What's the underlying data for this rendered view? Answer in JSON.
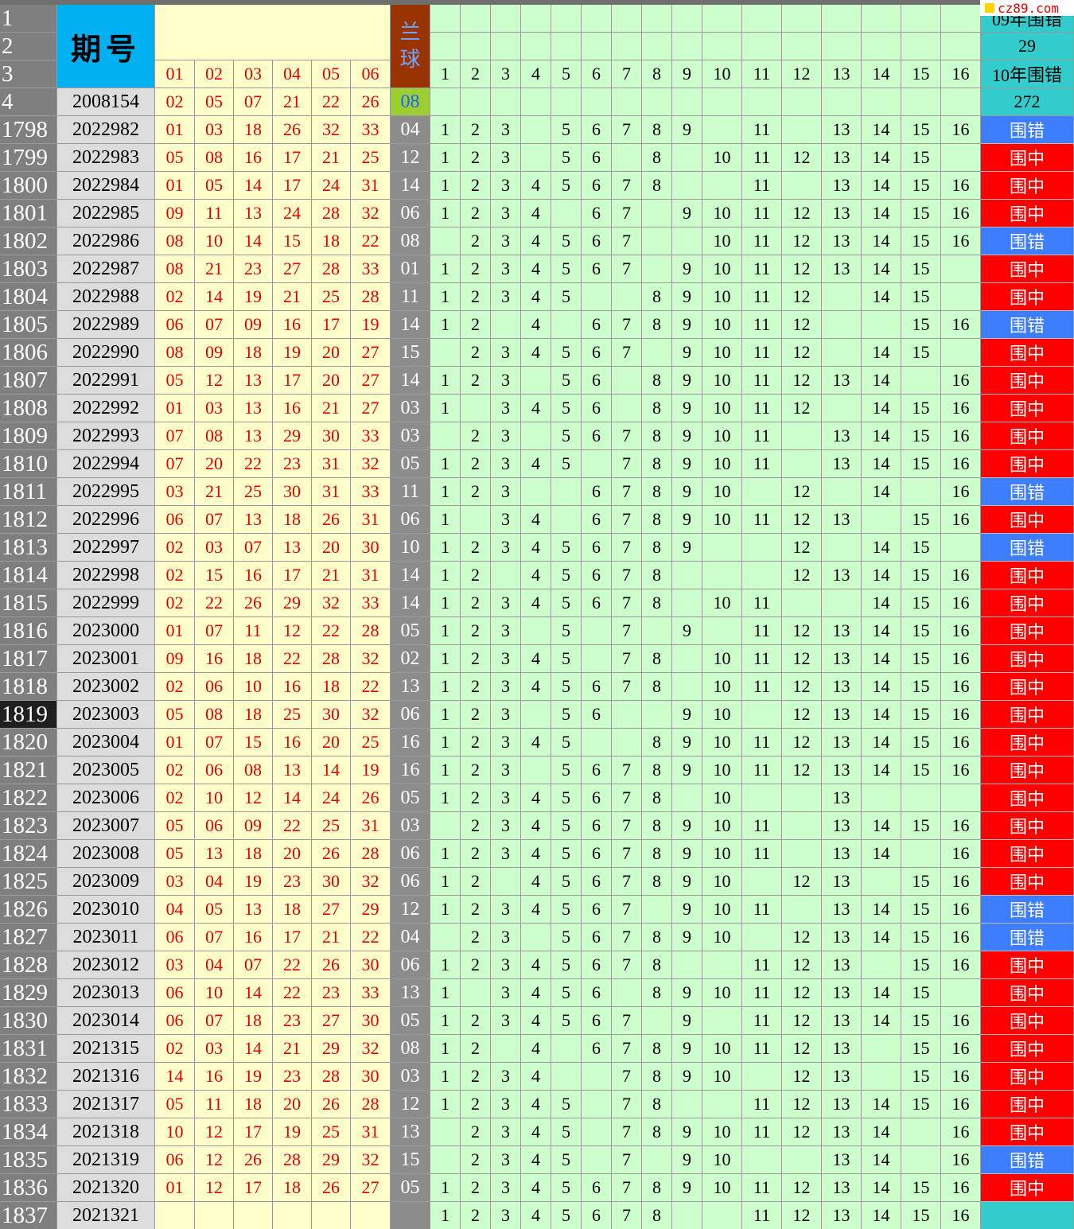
{
  "header": {
    "row_labels": [
      "1",
      "2",
      "3",
      "4"
    ],
    "period_label": "期号",
    "blue_label": [
      "兰",
      "球"
    ],
    "red_cols": [
      "01",
      "02",
      "03",
      "04",
      "05",
      "06"
    ],
    "grid_cols": [
      "1",
      "2",
      "3",
      "4",
      "5",
      "6",
      "7",
      "8",
      "9",
      "10",
      "11",
      "12",
      "13",
      "14",
      "15",
      "16"
    ],
    "stat_09_label": "09年围错",
    "stat_09_value": "29",
    "stat_10_label": "10年围错",
    "stat_10_value": "272",
    "ref_period": "2008154",
    "ref_reds": [
      "02",
      "05",
      "07",
      "21",
      "22",
      "26"
    ],
    "ref_blue": "08"
  },
  "watermark": "cz89.com",
  "selected_row": "1819",
  "labels": {
    "hit": "围中",
    "miss": "围错"
  },
  "rows": [
    {
      "n": "1798",
      "period": "2022982",
      "reds": [
        "01",
        "03",
        "18",
        "26",
        "32",
        "33"
      ],
      "blue": "04",
      "covered": [
        1,
        2,
        3,
        5,
        6,
        7,
        8,
        9,
        11,
        13,
        14,
        15,
        16
      ],
      "result": "miss"
    },
    {
      "n": "1799",
      "period": "2022983",
      "reds": [
        "05",
        "08",
        "16",
        "17",
        "21",
        "25"
      ],
      "blue": "12",
      "covered": [
        1,
        2,
        3,
        5,
        6,
        8,
        10,
        11,
        12,
        13,
        14,
        15
      ],
      "result": "hit"
    },
    {
      "n": "1800",
      "period": "2022984",
      "reds": [
        "01",
        "05",
        "14",
        "17",
        "24",
        "31"
      ],
      "blue": "14",
      "covered": [
        1,
        2,
        3,
        4,
        5,
        6,
        7,
        8,
        11,
        13,
        14,
        15,
        16
      ],
      "result": "hit"
    },
    {
      "n": "1801",
      "period": "2022985",
      "reds": [
        "09",
        "11",
        "13",
        "24",
        "28",
        "32"
      ],
      "blue": "06",
      "covered": [
        1,
        2,
        3,
        4,
        6,
        7,
        9,
        10,
        11,
        12,
        13,
        14,
        15,
        16
      ],
      "result": "hit"
    },
    {
      "n": "1802",
      "period": "2022986",
      "reds": [
        "08",
        "10",
        "14",
        "15",
        "18",
        "22"
      ],
      "blue": "08",
      "covered": [
        2,
        3,
        4,
        5,
        6,
        7,
        10,
        11,
        12,
        13,
        14,
        15,
        16
      ],
      "result": "miss"
    },
    {
      "n": "1803",
      "period": "2022987",
      "reds": [
        "08",
        "21",
        "23",
        "27",
        "28",
        "33"
      ],
      "blue": "01",
      "covered": [
        1,
        2,
        3,
        4,
        5,
        6,
        7,
        9,
        10,
        11,
        12,
        13,
        14,
        15
      ],
      "result": "hit"
    },
    {
      "n": "1804",
      "period": "2022988",
      "reds": [
        "02",
        "14",
        "19",
        "21",
        "25",
        "28"
      ],
      "blue": "11",
      "covered": [
        1,
        2,
        3,
        4,
        5,
        8,
        9,
        10,
        11,
        12,
        14,
        15
      ],
      "result": "hit"
    },
    {
      "n": "1805",
      "period": "2022989",
      "reds": [
        "06",
        "07",
        "09",
        "16",
        "17",
        "19"
      ],
      "blue": "14",
      "covered": [
        1,
        2,
        4,
        6,
        7,
        8,
        9,
        10,
        11,
        12,
        15,
        16
      ],
      "result": "miss"
    },
    {
      "n": "1806",
      "period": "2022990",
      "reds": [
        "08",
        "09",
        "18",
        "19",
        "20",
        "27"
      ],
      "blue": "15",
      "covered": [
        2,
        3,
        4,
        5,
        6,
        7,
        9,
        10,
        11,
        12,
        14,
        15
      ],
      "result": "hit"
    },
    {
      "n": "1807",
      "period": "2022991",
      "reds": [
        "05",
        "12",
        "13",
        "17",
        "20",
        "27"
      ],
      "blue": "14",
      "covered": [
        1,
        2,
        3,
        5,
        6,
        8,
        9,
        10,
        11,
        12,
        13,
        14,
        16
      ],
      "result": "hit"
    },
    {
      "n": "1808",
      "period": "2022992",
      "reds": [
        "01",
        "03",
        "13",
        "16",
        "21",
        "27"
      ],
      "blue": "03",
      "covered": [
        1,
        3,
        4,
        5,
        6,
        8,
        9,
        10,
        11,
        12,
        14,
        15,
        16
      ],
      "result": "hit"
    },
    {
      "n": "1809",
      "period": "2022993",
      "reds": [
        "07",
        "08",
        "13",
        "29",
        "30",
        "33"
      ],
      "blue": "03",
      "covered": [
        2,
        3,
        5,
        6,
        7,
        8,
        9,
        10,
        11,
        13,
        14,
        15,
        16
      ],
      "result": "hit"
    },
    {
      "n": "1810",
      "period": "2022994",
      "reds": [
        "07",
        "20",
        "22",
        "23",
        "31",
        "32"
      ],
      "blue": "05",
      "covered": [
        1,
        2,
        3,
        4,
        5,
        7,
        8,
        9,
        10,
        11,
        13,
        14,
        15,
        16
      ],
      "result": "hit"
    },
    {
      "n": "1811",
      "period": "2022995",
      "reds": [
        "03",
        "21",
        "25",
        "30",
        "31",
        "33"
      ],
      "blue": "11",
      "covered": [
        1,
        2,
        3,
        6,
        7,
        8,
        9,
        10,
        12,
        14,
        16
      ],
      "result": "miss"
    },
    {
      "n": "1812",
      "period": "2022996",
      "reds": [
        "06",
        "07",
        "13",
        "18",
        "26",
        "31"
      ],
      "blue": "06",
      "covered": [
        1,
        3,
        4,
        6,
        7,
        8,
        9,
        10,
        11,
        12,
        13,
        15,
        16
      ],
      "result": "hit"
    },
    {
      "n": "1813",
      "period": "2022997",
      "reds": [
        "02",
        "03",
        "07",
        "13",
        "20",
        "30"
      ],
      "blue": "10",
      "covered": [
        1,
        2,
        3,
        4,
        5,
        6,
        7,
        8,
        9,
        12,
        14,
        15
      ],
      "result": "miss"
    },
    {
      "n": "1814",
      "period": "2022998",
      "reds": [
        "02",
        "15",
        "16",
        "17",
        "21",
        "31"
      ],
      "blue": "14",
      "covered": [
        1,
        2,
        4,
        5,
        6,
        7,
        8,
        12,
        13,
        14,
        15,
        16
      ],
      "result": "hit"
    },
    {
      "n": "1815",
      "period": "2022999",
      "reds": [
        "02",
        "22",
        "26",
        "29",
        "32",
        "33"
      ],
      "blue": "14",
      "covered": [
        1,
        2,
        3,
        4,
        5,
        6,
        7,
        8,
        10,
        11,
        14,
        15,
        16
      ],
      "result": "hit"
    },
    {
      "n": "1816",
      "period": "2023000",
      "reds": [
        "01",
        "07",
        "11",
        "12",
        "22",
        "28"
      ],
      "blue": "05",
      "covered": [
        1,
        2,
        3,
        5,
        7,
        9,
        11,
        12,
        13,
        14,
        15,
        16
      ],
      "result": "hit"
    },
    {
      "n": "1817",
      "period": "2023001",
      "reds": [
        "09",
        "16",
        "18",
        "22",
        "28",
        "32"
      ],
      "blue": "02",
      "covered": [
        1,
        2,
        3,
        4,
        5,
        7,
        8,
        10,
        11,
        12,
        13,
        14,
        15,
        16
      ],
      "result": "hit"
    },
    {
      "n": "1818",
      "period": "2023002",
      "reds": [
        "02",
        "06",
        "10",
        "16",
        "18",
        "22"
      ],
      "blue": "13",
      "covered": [
        1,
        2,
        3,
        4,
        5,
        6,
        7,
        8,
        10,
        11,
        12,
        13,
        14,
        15,
        16
      ],
      "result": "hit"
    },
    {
      "n": "1819",
      "period": "2023003",
      "reds": [
        "05",
        "08",
        "18",
        "25",
        "30",
        "32"
      ],
      "blue": "06",
      "covered": [
        1,
        2,
        3,
        5,
        6,
        9,
        10,
        12,
        13,
        14,
        15,
        16
      ],
      "result": "hit"
    },
    {
      "n": "1820",
      "period": "2023004",
      "reds": [
        "01",
        "07",
        "15",
        "16",
        "20",
        "25"
      ],
      "blue": "16",
      "covered": [
        1,
        2,
        3,
        4,
        5,
        8,
        9,
        10,
        11,
        12,
        13,
        14,
        15,
        16
      ],
      "result": "hit"
    },
    {
      "n": "1821",
      "period": "2023005",
      "reds": [
        "02",
        "06",
        "08",
        "13",
        "14",
        "19"
      ],
      "blue": "16",
      "covered": [
        1,
        2,
        3,
        5,
        6,
        7,
        8,
        9,
        10,
        11,
        12,
        13,
        14,
        15,
        16
      ],
      "result": "hit"
    },
    {
      "n": "1822",
      "period": "2023006",
      "reds": [
        "02",
        "10",
        "12",
        "14",
        "24",
        "26"
      ],
      "blue": "05",
      "covered": [
        1,
        2,
        3,
        4,
        5,
        6,
        7,
        8,
        10,
        13
      ],
      "result": "hit"
    },
    {
      "n": "1823",
      "period": "2023007",
      "reds": [
        "05",
        "06",
        "09",
        "22",
        "25",
        "31"
      ],
      "blue": "03",
      "covered": [
        2,
        3,
        4,
        5,
        6,
        7,
        8,
        9,
        10,
        11,
        13,
        14,
        15,
        16
      ],
      "result": "hit"
    },
    {
      "n": "1824",
      "period": "2023008",
      "reds": [
        "05",
        "13",
        "18",
        "20",
        "26",
        "28"
      ],
      "blue": "06",
      "covered": [
        1,
        2,
        3,
        4,
        5,
        6,
        7,
        8,
        9,
        10,
        11,
        13,
        14,
        16
      ],
      "result": "hit"
    },
    {
      "n": "1825",
      "period": "2023009",
      "reds": [
        "03",
        "04",
        "19",
        "23",
        "30",
        "32"
      ],
      "blue": "06",
      "covered": [
        1,
        2,
        4,
        5,
        6,
        7,
        8,
        9,
        10,
        12,
        13,
        15,
        16
      ],
      "result": "hit"
    },
    {
      "n": "1826",
      "period": "2023010",
      "reds": [
        "04",
        "05",
        "13",
        "18",
        "27",
        "29"
      ],
      "blue": "12",
      "covered": [
        1,
        2,
        3,
        4,
        5,
        6,
        7,
        9,
        10,
        11,
        13,
        14,
        15,
        16
      ],
      "result": "miss"
    },
    {
      "n": "1827",
      "period": "2023011",
      "reds": [
        "06",
        "07",
        "16",
        "17",
        "21",
        "22"
      ],
      "blue": "04",
      "covered": [
        2,
        3,
        5,
        6,
        7,
        8,
        9,
        10,
        12,
        13,
        14,
        15,
        16
      ],
      "result": "miss"
    },
    {
      "n": "1828",
      "period": "2023012",
      "reds": [
        "03",
        "04",
        "07",
        "22",
        "26",
        "30"
      ],
      "blue": "06",
      "covered": [
        1,
        2,
        3,
        4,
        5,
        6,
        7,
        8,
        11,
        12,
        13,
        15,
        16
      ],
      "result": "hit"
    },
    {
      "n": "1829",
      "period": "2023013",
      "reds": [
        "06",
        "10",
        "14",
        "22",
        "23",
        "33"
      ],
      "blue": "13",
      "covered": [
        1,
        3,
        4,
        5,
        6,
        8,
        9,
        10,
        11,
        12,
        13,
        14,
        15
      ],
      "result": "hit"
    },
    {
      "n": "1830",
      "period": "2023014",
      "reds": [
        "06",
        "07",
        "18",
        "23",
        "27",
        "30"
      ],
      "blue": "05",
      "covered": [
        1,
        2,
        3,
        4,
        5,
        6,
        7,
        9,
        11,
        12,
        13,
        14,
        15,
        16
      ],
      "result": "hit"
    },
    {
      "n": "1831",
      "period": "2021315",
      "reds": [
        "02",
        "03",
        "14",
        "21",
        "29",
        "32"
      ],
      "blue": "08",
      "covered": [
        1,
        2,
        4,
        6,
        7,
        8,
        9,
        10,
        11,
        12,
        13,
        15,
        16
      ],
      "result": "hit"
    },
    {
      "n": "1832",
      "period": "2021316",
      "reds": [
        "14",
        "16",
        "19",
        "23",
        "28",
        "30"
      ],
      "blue": "03",
      "covered": [
        1,
        2,
        3,
        4,
        7,
        8,
        9,
        10,
        12,
        13,
        15,
        16
      ],
      "result": "hit"
    },
    {
      "n": "1833",
      "period": "2021317",
      "reds": [
        "05",
        "11",
        "18",
        "20",
        "26",
        "28"
      ],
      "blue": "12",
      "covered": [
        1,
        2,
        3,
        4,
        5,
        7,
        8,
        11,
        12,
        13,
        14,
        15,
        16
      ],
      "result": "hit"
    },
    {
      "n": "1834",
      "period": "2021318",
      "reds": [
        "10",
        "12",
        "17",
        "19",
        "25",
        "31"
      ],
      "blue": "13",
      "covered": [
        2,
        3,
        4,
        5,
        7,
        8,
        9,
        10,
        11,
        12,
        13,
        14,
        16
      ],
      "result": "hit"
    },
    {
      "n": "1835",
      "period": "2021319",
      "reds": [
        "06",
        "12",
        "26",
        "28",
        "29",
        "32"
      ],
      "blue": "15",
      "covered": [
        2,
        3,
        4,
        5,
        7,
        9,
        10,
        13,
        14,
        16
      ],
      "result": "miss"
    },
    {
      "n": "1836",
      "period": "2021320",
      "reds": [
        "01",
        "12",
        "17",
        "18",
        "26",
        "27"
      ],
      "blue": "05",
      "covered": [
        1,
        2,
        3,
        4,
        5,
        6,
        7,
        8,
        9,
        10,
        11,
        12,
        13,
        14,
        15,
        16
      ],
      "result": "hit"
    },
    {
      "n": "1837",
      "period": "2021321",
      "reds": [
        "",
        "",
        "",
        "",
        "",
        ""
      ],
      "blue": "",
      "covered": [
        1,
        2,
        3,
        4,
        5,
        6,
        7,
        8,
        11,
        12,
        13,
        14,
        15,
        16
      ],
      "result": "none"
    }
  ]
}
